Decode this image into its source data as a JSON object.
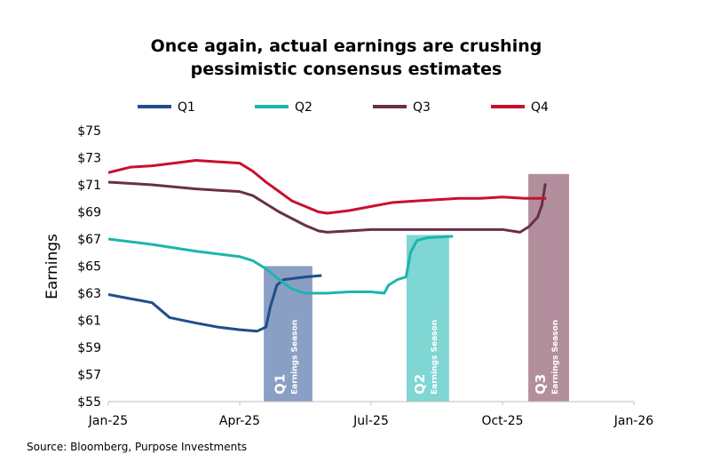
{
  "chart_data": {
    "type": "line",
    "title": "Once again, actual earnings are crushing",
    "subtitle": "pessimistic consensus estimates",
    "y_label": "Earnings",
    "source": "Source: Bloomberg, Purpose Investments",
    "xlim": [
      0,
      12
    ],
    "xticks": [
      {
        "value": 0,
        "label": "Jan-25"
      },
      {
        "value": 3,
        "label": "Apr-25"
      },
      {
        "value": 6,
        "label": "Jul-25"
      },
      {
        "value": 9,
        "label": "Oct-25"
      },
      {
        "value": 12,
        "label": "Jan-26"
      }
    ],
    "ylim": [
      55,
      75
    ],
    "yticks": [
      {
        "value": 55,
        "label": "$55"
      },
      {
        "value": 57,
        "label": "$57"
      },
      {
        "value": 59,
        "label": "$59"
      },
      {
        "value": 61,
        "label": "$61"
      },
      {
        "value": 63,
        "label": "$63"
      },
      {
        "value": 65,
        "label": "$65"
      },
      {
        "value": 67,
        "label": "$67"
      },
      {
        "value": 69,
        "label": "$69"
      },
      {
        "value": 71,
        "label": "$71"
      },
      {
        "value": 73,
        "label": "$73"
      },
      {
        "value": 75,
        "label": "$75"
      }
    ],
    "grid": false,
    "legend": "top",
    "series": [
      {
        "name": "Q1",
        "color": "#1f4e8c",
        "x": [
          0,
          0.5,
          1,
          1.4,
          2,
          2.5,
          3,
          3.4,
          3.6,
          3.7,
          3.85,
          4.0,
          4.5,
          4.87
        ],
        "values": [
          62.9,
          62.6,
          62.3,
          61.2,
          60.8,
          60.5,
          60.3,
          60.2,
          60.5,
          62.0,
          63.6,
          64.0,
          64.2,
          64.3
        ]
      },
      {
        "name": "Q2",
        "color": "#1cb5ac",
        "x": [
          0,
          1,
          2,
          3,
          3.3,
          3.6,
          3.9,
          4.2,
          4.5,
          5.0,
          5.5,
          6.0,
          6.3,
          6.4,
          6.6,
          6.8,
          6.9,
          7.05,
          7.3,
          7.87
        ],
        "values": [
          67.0,
          66.6,
          66.1,
          65.7,
          65.4,
          64.8,
          64.0,
          63.3,
          63.0,
          63.0,
          63.1,
          63.1,
          63.0,
          63.6,
          64.0,
          64.2,
          66.0,
          66.9,
          67.1,
          67.2
        ]
      },
      {
        "name": "Q3",
        "color": "#6b2e4a",
        "x": [
          0,
          1,
          2,
          3,
          3.3,
          3.6,
          3.9,
          4.2,
          4.5,
          4.8,
          5.0,
          6.0,
          7.0,
          8.0,
          9.0,
          9.4,
          9.6,
          9.8,
          9.9,
          9.98
        ],
        "values": [
          71.2,
          71.0,
          70.7,
          70.5,
          70.2,
          69.6,
          69.0,
          68.5,
          68.0,
          67.6,
          67.5,
          67.7,
          67.7,
          67.7,
          67.7,
          67.5,
          67.9,
          68.6,
          69.5,
          71.1
        ]
      },
      {
        "name": "Q4",
        "color": "#c8102e",
        "x": [
          0,
          0.5,
          1,
          1.5,
          2,
          2.5,
          3,
          3.3,
          3.6,
          3.9,
          4.2,
          4.5,
          4.8,
          5.0,
          5.5,
          6.0,
          6.5,
          7.0,
          7.5,
          8.0,
          8.5,
          9.0,
          9.5,
          10.0
        ],
        "values": [
          71.9,
          72.3,
          72.4,
          72.6,
          72.8,
          72.7,
          72.6,
          72.0,
          71.2,
          70.5,
          69.8,
          69.4,
          69.0,
          68.9,
          69.1,
          69.4,
          69.7,
          69.8,
          69.9,
          70.0,
          70.0,
          70.1,
          70.0,
          70.0
        ]
      }
    ],
    "annotations": [
      {
        "label": "Q1",
        "sublabel": "Earnings Season",
        "x": [
          3.55,
          4.66
        ],
        "y": [
          55,
          65
        ],
        "color": "#8a9fc4"
      },
      {
        "label": "Q2",
        "sublabel": "Earnings Season",
        "x": [
          6.81,
          7.78
        ],
        "y": [
          55,
          67.3
        ],
        "color": "#7fd6d3"
      },
      {
        "label": "Q3",
        "sublabel": "Earnings Season",
        "x": [
          9.59,
          10.52
        ],
        "y": [
          55,
          71.8
        ],
        "color": "#b38e9c"
      }
    ]
  }
}
